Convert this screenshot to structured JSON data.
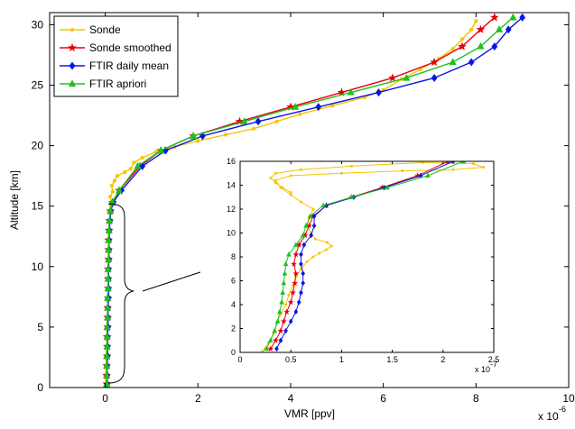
{
  "chart_data": [
    {
      "type": "line",
      "xlabel": "VMR [ppv]",
      "ylabel": "Altitude [km]",
      "x_exponent_label": "x 10",
      "x_exponent_power": "-6",
      "xlim": [
        -1.2,
        10
      ],
      "ylim": [
        0,
        31
      ],
      "xticks": [
        0,
        2,
        4,
        6,
        8,
        10
      ],
      "yticks": [
        0,
        5,
        10,
        15,
        20,
        25,
        30
      ],
      "grid": false,
      "legend_position": "top-left",
      "series": [
        {
          "name": "Sonde",
          "color": "#f5c400",
          "marker": "dot",
          "points": [
            [
              0.02,
              0.3
            ],
            [
              0.0,
              1.0
            ],
            [
              0.03,
              1.8
            ],
            [
              0.01,
              2.6
            ],
            [
              0.04,
              3.4
            ],
            [
              0.02,
              4.2
            ],
            [
              0.05,
              5.0
            ],
            [
              0.03,
              5.8
            ],
            [
              0.06,
              6.6
            ],
            [
              0.04,
              7.4
            ],
            [
              0.07,
              8.2
            ],
            [
              0.05,
              9.0
            ],
            [
              0.08,
              9.8
            ],
            [
              0.06,
              10.6
            ],
            [
              0.07,
              11.4
            ],
            [
              0.09,
              12.2
            ],
            [
              0.08,
              13.0
            ],
            [
              0.1,
              13.8
            ],
            [
              0.09,
              14.6
            ],
            [
              0.12,
              15.2
            ],
            [
              0.11,
              15.8
            ],
            [
              0.16,
              16.2
            ],
            [
              0.14,
              16.7
            ],
            [
              0.2,
              17.1
            ],
            [
              0.26,
              17.5
            ],
            [
              0.42,
              17.8
            ],
            [
              0.55,
              18.1
            ],
            [
              0.62,
              18.6
            ],
            [
              0.8,
              19.0
            ],
            [
              1.1,
              19.5
            ],
            [
              1.5,
              19.9
            ],
            [
              2.0,
              20.4
            ],
            [
              2.6,
              20.9
            ],
            [
              3.2,
              21.4
            ],
            [
              3.7,
              22.0
            ],
            [
              4.2,
              22.6
            ],
            [
              4.9,
              23.3
            ],
            [
              5.6,
              24.0
            ],
            [
              6.0,
              24.6
            ],
            [
              6.4,
              25.5
            ],
            [
              6.8,
              26.3
            ],
            [
              7.2,
              27.2
            ],
            [
              7.5,
              28.0
            ],
            [
              7.7,
              28.8
            ],
            [
              7.9,
              29.6
            ],
            [
              8.0,
              30.3
            ]
          ]
        },
        {
          "name": "Sonde smoothed",
          "color": "#e8000b",
          "marker": "star",
          "points": [
            [
              0.03,
              0.3
            ],
            [
              0.03,
              1.0
            ],
            [
              0.03,
              1.8
            ],
            [
              0.04,
              2.6
            ],
            [
              0.04,
              3.4
            ],
            [
              0.04,
              4.2
            ],
            [
              0.05,
              5.0
            ],
            [
              0.05,
              5.8
            ],
            [
              0.05,
              6.6
            ],
            [
              0.06,
              7.4
            ],
            [
              0.06,
              8.2
            ],
            [
              0.06,
              9.0
            ],
            [
              0.06,
              9.8
            ],
            [
              0.07,
              10.6
            ],
            [
              0.07,
              11.4
            ],
            [
              0.07,
              12.2
            ],
            [
              0.08,
              13.0
            ],
            [
              0.09,
              13.8
            ],
            [
              0.11,
              14.6
            ],
            [
              0.16,
              15.3
            ],
            [
              0.3,
              16.3
            ],
            [
              0.75,
              18.3
            ],
            [
              1.2,
              19.6
            ],
            [
              1.9,
              20.8
            ],
            [
              2.9,
              22.0
            ],
            [
              4.0,
              23.2
            ],
            [
              5.1,
              24.4
            ],
            [
              6.2,
              25.6
            ],
            [
              7.1,
              26.9
            ],
            [
              7.7,
              28.2
            ],
            [
              8.1,
              29.6
            ],
            [
              8.4,
              30.6
            ]
          ]
        },
        {
          "name": "FTIR daily mean",
          "color": "#0a15e6",
          "marker": "diamond",
          "points": [
            [
              0.04,
              0.3
            ],
            [
              0.04,
              1.0
            ],
            [
              0.04,
              1.8
            ],
            [
              0.05,
              2.6
            ],
            [
              0.05,
              3.4
            ],
            [
              0.05,
              4.2
            ],
            [
              0.06,
              5.0
            ],
            [
              0.06,
              5.8
            ],
            [
              0.06,
              6.6
            ],
            [
              0.07,
              7.4
            ],
            [
              0.07,
              8.2
            ],
            [
              0.07,
              9.0
            ],
            [
              0.07,
              9.8
            ],
            [
              0.08,
              10.6
            ],
            [
              0.08,
              11.4
            ],
            [
              0.08,
              12.2
            ],
            [
              0.09,
              13.0
            ],
            [
              0.1,
              13.8
            ],
            [
              0.12,
              14.6
            ],
            [
              0.17,
              15.3
            ],
            [
              0.35,
              16.3
            ],
            [
              0.8,
              18.3
            ],
            [
              1.3,
              19.6
            ],
            [
              2.1,
              20.8
            ],
            [
              3.3,
              22.0
            ],
            [
              4.6,
              23.2
            ],
            [
              5.9,
              24.4
            ],
            [
              7.1,
              25.6
            ],
            [
              7.9,
              26.9
            ],
            [
              8.4,
              28.2
            ],
            [
              8.7,
              29.6
            ],
            [
              9.0,
              30.6
            ]
          ]
        },
        {
          "name": "FTIR apriori",
          "color": "#1ec01e",
          "marker": "triangle",
          "points": [
            [
              0.03,
              0.3
            ],
            [
              0.03,
              1.0
            ],
            [
              0.03,
              1.8
            ],
            [
              0.03,
              2.6
            ],
            [
              0.04,
              3.4
            ],
            [
              0.04,
              4.2
            ],
            [
              0.04,
              5.0
            ],
            [
              0.05,
              5.8
            ],
            [
              0.05,
              6.6
            ],
            [
              0.05,
              7.4
            ],
            [
              0.06,
              8.2
            ],
            [
              0.06,
              9.0
            ],
            [
              0.06,
              9.8
            ],
            [
              0.07,
              10.6
            ],
            [
              0.07,
              11.4
            ],
            [
              0.07,
              12.2
            ],
            [
              0.08,
              13.0
            ],
            [
              0.09,
              13.8
            ],
            [
              0.11,
              14.6
            ],
            [
              0.15,
              15.3
            ],
            [
              0.3,
              16.3
            ],
            [
              0.7,
              18.3
            ],
            [
              1.2,
              19.6
            ],
            [
              1.9,
              20.8
            ],
            [
              3.0,
              22.0
            ],
            [
              4.1,
              23.2
            ],
            [
              5.3,
              24.4
            ],
            [
              6.5,
              25.6
            ],
            [
              7.5,
              26.9
            ],
            [
              8.1,
              28.2
            ],
            [
              8.5,
              29.6
            ],
            [
              8.8,
              30.6
            ]
          ]
        }
      ]
    },
    {
      "type": "line",
      "role": "inset",
      "x_exponent_label": "x 10",
      "x_exponent_power": "-7",
      "xlim": [
        0,
        2.5
      ],
      "ylim": [
        0,
        16
      ],
      "xticks": [
        0,
        0.5,
        1,
        1.5,
        2,
        2.5
      ],
      "xtick_labels": [
        "0",
        "0.5",
        "1",
        "1.5",
        "2",
        "2.5"
      ],
      "yticks": [
        0,
        2,
        4,
        6,
        8,
        10,
        12,
        14,
        16
      ],
      "series": [
        {
          "name": "Sonde",
          "color": "#f5c400",
          "marker": "dot",
          "points": [
            [
              0.22,
              0.1
            ],
            [
              0.28,
              0.8
            ],
            [
              0.33,
              1.6
            ],
            [
              0.36,
              2.4
            ],
            [
              0.4,
              3.2
            ],
            [
              0.45,
              4.0
            ],
            [
              0.48,
              4.8
            ],
            [
              0.52,
              5.6
            ],
            [
              0.55,
              6.3
            ],
            [
              0.6,
              7.0
            ],
            [
              0.66,
              7.6
            ],
            [
              0.72,
              8.0
            ],
            [
              0.78,
              8.3
            ],
            [
              0.85,
              8.6
            ],
            [
              0.9,
              8.9
            ],
            [
              0.86,
              9.2
            ],
            [
              0.74,
              9.5
            ],
            [
              0.7,
              10.0
            ],
            [
              0.66,
              10.6
            ],
            [
              0.68,
              11.2
            ],
            [
              0.72,
              12.0
            ],
            [
              0.6,
              12.6
            ],
            [
              0.5,
              13.2
            ],
            [
              0.4,
              13.8
            ],
            [
              0.35,
              14.4
            ],
            [
              0.5,
              14.8
            ],
            [
              1.0,
              15.0
            ],
            [
              1.6,
              15.2
            ],
            [
              2.1,
              15.3
            ],
            [
              2.4,
              15.5
            ],
            [
              2.3,
              15.8
            ],
            [
              1.8,
              15.9
            ],
            [
              1.1,
              15.6
            ],
            [
              0.6,
              15.3
            ],
            [
              0.35,
              15.0
            ],
            [
              0.3,
              14.6
            ],
            [
              0.35,
              14.2
            ],
            [
              0.42,
              13.8
            ],
            [
              0.5,
              13.4
            ]
          ]
        },
        {
          "name": "Sonde smoothed",
          "color": "#e8000b",
          "marker": "star",
          "points": [
            [
              0.3,
              0.3
            ],
            [
              0.35,
              1.0
            ],
            [
              0.4,
              1.8
            ],
            [
              0.43,
              2.6
            ],
            [
              0.46,
              3.4
            ],
            [
              0.5,
              4.2
            ],
            [
              0.52,
              5.0
            ],
            [
              0.54,
              5.8
            ],
            [
              0.55,
              6.6
            ],
            [
              0.53,
              7.4
            ],
            [
              0.55,
              8.2
            ],
            [
              0.58,
              9.0
            ],
            [
              0.64,
              9.8
            ],
            [
              0.68,
              10.6
            ],
            [
              0.72,
              11.4
            ],
            [
              0.85,
              12.3
            ],
            [
              1.1,
              13.0
            ],
            [
              1.4,
              13.8
            ],
            [
              1.75,
              14.8
            ],
            [
              2.05,
              16.0
            ]
          ]
        },
        {
          "name": "FTIR daily mean",
          "color": "#0a15e6",
          "marker": "diamond",
          "points": [
            [
              0.36,
              0.3
            ],
            [
              0.4,
              1.0
            ],
            [
              0.45,
              1.8
            ],
            [
              0.5,
              2.6
            ],
            [
              0.55,
              3.4
            ],
            [
              0.58,
              4.2
            ],
            [
              0.6,
              5.0
            ],
            [
              0.62,
              5.8
            ],
            [
              0.62,
              6.6
            ],
            [
              0.6,
              7.4
            ],
            [
              0.6,
              8.2
            ],
            [
              0.63,
              9.0
            ],
            [
              0.7,
              9.8
            ],
            [
              0.73,
              10.6
            ],
            [
              0.73,
              11.4
            ],
            [
              0.85,
              12.3
            ],
            [
              1.12,
              13.0
            ],
            [
              1.42,
              13.8
            ],
            [
              1.78,
              14.8
            ],
            [
              2.1,
              16.0
            ]
          ]
        },
        {
          "name": "FTIR apriori",
          "color": "#1ec01e",
          "marker": "triangle",
          "points": [
            [
              0.26,
              0.3
            ],
            [
              0.3,
              1.0
            ],
            [
              0.34,
              1.8
            ],
            [
              0.37,
              2.6
            ],
            [
              0.39,
              3.4
            ],
            [
              0.41,
              4.2
            ],
            [
              0.42,
              5.0
            ],
            [
              0.43,
              5.8
            ],
            [
              0.44,
              6.6
            ],
            [
              0.45,
              7.4
            ],
            [
              0.48,
              8.2
            ],
            [
              0.55,
              9.0
            ],
            [
              0.62,
              9.8
            ],
            [
              0.65,
              10.6
            ],
            [
              0.69,
              11.4
            ],
            [
              0.82,
              12.3
            ],
            [
              1.1,
              13.0
            ],
            [
              1.45,
              13.8
            ],
            [
              1.85,
              14.8
            ],
            [
              2.2,
              16.0
            ]
          ]
        }
      ]
    }
  ]
}
